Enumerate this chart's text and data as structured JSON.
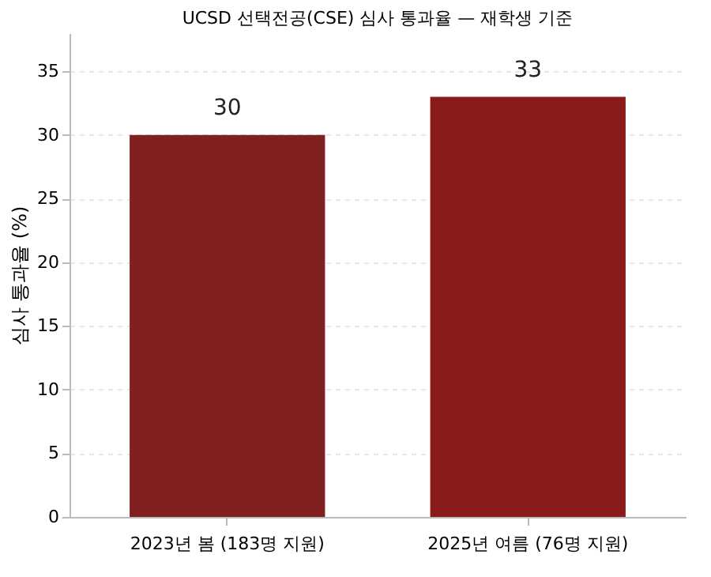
{
  "chart_data": {
    "type": "bar",
    "title": "UCSD 선택전공(CSE) 심사 통과율 — 재학생 기준",
    "categories": [
      "2023년 봄 (183명 지원)",
      "2025년 여름 (76명 지원)"
    ],
    "values": [
      30,
      33
    ],
    "colors": [
      "#7f1f1f",
      "#8b1a1a"
    ],
    "ylabel": "심사 통과율 (%)",
    "ylim": [
      0,
      38
    ],
    "yticks": [
      0,
      5,
      10,
      15,
      20,
      25,
      30,
      35
    ],
    "grid": "y",
    "data_labels": true
  }
}
